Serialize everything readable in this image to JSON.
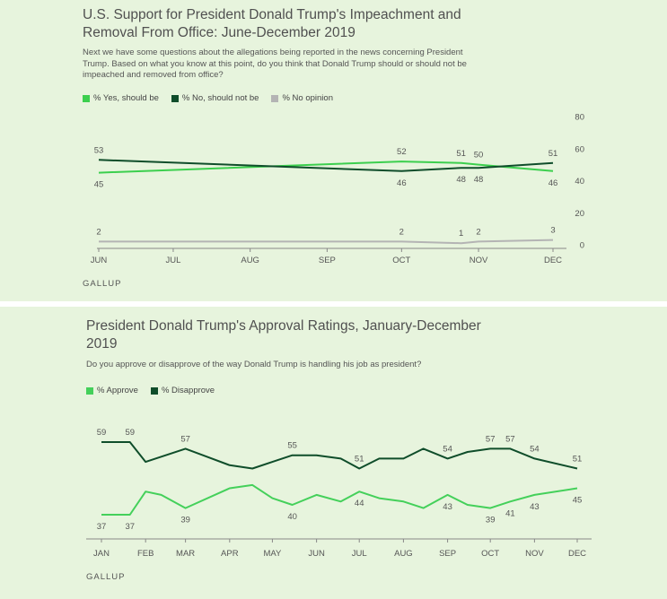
{
  "colors": {
    "yes": "#3ccf4e",
    "no": "#0f4d2a",
    "noop": "#b4b4b4",
    "approve": "#44d05a",
    "disapprove": "#0f4d2a",
    "panel_bg": "#e7f4dd"
  },
  "chart_data": [
    {
      "type": "line",
      "title": "U.S. Support for President Donald Trump's Impeachment and Removal From Office: June-December 2019",
      "question": "Next we have some questions about the allegations being reported in the news concerning President Trump. Based on what you know at this point, do you think that Donald Trump should or should not be impeached and removed from office?",
      "source": "GALLUP",
      "legend": [
        "% Yes, should be",
        "% No, should not be",
        "% No opinion"
      ],
      "legend_position": "top-left",
      "x_ticks": [
        "JUN",
        "JUL",
        "AUG",
        "SEP",
        "OCT",
        "NOV",
        "DEC"
      ],
      "y_ticks": [
        "0",
        "20",
        "40",
        "60",
        "80"
      ],
      "ylim": [
        0,
        80
      ],
      "y_axis_side": "right",
      "grid": false,
      "series": [
        {
          "name": "% Yes, should be",
          "color_key": "yes",
          "points": [
            {
              "date": "2019-06-01",
              "value": 45,
              "label": "45"
            },
            {
              "date": "2019-10-01",
              "value": 52,
              "label": "52"
            },
            {
              "date": "2019-10-25",
              "value": 51,
              "label": "51"
            },
            {
              "date": "2019-11-01",
              "value": 50,
              "label": "50"
            },
            {
              "date": "2019-12-01",
              "value": 46,
              "label": "46"
            }
          ]
        },
        {
          "name": "% No, should not be",
          "color_key": "no",
          "points": [
            {
              "date": "2019-06-01",
              "value": 53,
              "label": "53"
            },
            {
              "date": "2019-10-01",
              "value": 46,
              "label": "46"
            },
            {
              "date": "2019-10-25",
              "value": 48,
              "label": "48"
            },
            {
              "date": "2019-11-01",
              "value": 48,
              "label": "48"
            },
            {
              "date": "2019-12-01",
              "value": 51,
              "label": "51"
            }
          ]
        },
        {
          "name": "% No opinion",
          "color_key": "noop",
          "points": [
            {
              "date": "2019-06-01",
              "value": 2,
              "label": "2"
            },
            {
              "date": "2019-10-01",
              "value": 2,
              "label": "2"
            },
            {
              "date": "2019-10-25",
              "value": 1,
              "label": "1"
            },
            {
              "date": "2019-11-01",
              "value": 2,
              "label": "2"
            },
            {
              "date": "2019-12-01",
              "value": 3,
              "label": "3"
            }
          ]
        }
      ]
    },
    {
      "type": "line",
      "title": "President Donald Trump's Approval Ratings, January-December 2019",
      "question": "Do you approve or disapprove of the way Donald Trump is handling his job as president?",
      "source": "GALLUP",
      "legend": [
        "% Approve",
        "% Disapprove"
      ],
      "legend_position": "top-left",
      "x_ticks": [
        "JAN",
        "FEB",
        "MAR",
        "APR",
        "MAY",
        "JUN",
        "JUL",
        "AUG",
        "SEP",
        "OCT",
        "NOV",
        "DEC"
      ],
      "y_axis_visible": false,
      "grid": false,
      "series": [
        {
          "name": "% Approve",
          "color_key": "approve",
          "points": [
            {
              "date": "2019-01-01",
              "value": 37,
              "label": "37"
            },
            {
              "date": "2019-01-21",
              "value": 37,
              "label": "37"
            },
            {
              "date": "2019-02-01",
              "value": 44
            },
            {
              "date": "2019-02-12",
              "value": 43
            },
            {
              "date": "2019-03-01",
              "value": 39,
              "label": "39"
            },
            {
              "date": "2019-04-01",
              "value": 45
            },
            {
              "date": "2019-04-17",
              "value": 46
            },
            {
              "date": "2019-05-01",
              "value": 42
            },
            {
              "date": "2019-05-15",
              "value": 40,
              "label": "40"
            },
            {
              "date": "2019-06-01",
              "value": 43
            },
            {
              "date": "2019-06-18",
              "value": 41
            },
            {
              "date": "2019-07-01",
              "value": 44,
              "label": "44"
            },
            {
              "date": "2019-07-15",
              "value": 42
            },
            {
              "date": "2019-08-01",
              "value": 41
            },
            {
              "date": "2019-08-15",
              "value": 39
            },
            {
              "date": "2019-09-01",
              "value": 43,
              "label": "43"
            },
            {
              "date": "2019-09-15",
              "value": 40
            },
            {
              "date": "2019-10-01",
              "value": 39,
              "label": "39"
            },
            {
              "date": "2019-10-15",
              "value": 41,
              "label": "41"
            },
            {
              "date": "2019-11-01",
              "value": 43,
              "label": "43"
            },
            {
              "date": "2019-12-01",
              "value": 45,
              "label": "45"
            }
          ]
        },
        {
          "name": "% Disapprove",
          "color_key": "disapprove",
          "points": [
            {
              "date": "2019-01-01",
              "value": 59,
              "label": "59"
            },
            {
              "date": "2019-01-21",
              "value": 59,
              "label": "59"
            },
            {
              "date": "2019-02-01",
              "value": 53
            },
            {
              "date": "2019-03-01",
              "value": 57,
              "label": "57"
            },
            {
              "date": "2019-04-01",
              "value": 52
            },
            {
              "date": "2019-04-17",
              "value": 51
            },
            {
              "date": "2019-05-01",
              "value": 53
            },
            {
              "date": "2019-05-15",
              "value": 55,
              "label": "55"
            },
            {
              "date": "2019-06-01",
              "value": 55
            },
            {
              "date": "2019-06-18",
              "value": 54
            },
            {
              "date": "2019-07-01",
              "value": 51,
              "label": "51"
            },
            {
              "date": "2019-07-15",
              "value": 54
            },
            {
              "date": "2019-08-01",
              "value": 54
            },
            {
              "date": "2019-08-15",
              "value": 57
            },
            {
              "date": "2019-09-01",
              "value": 54,
              "label": "54"
            },
            {
              "date": "2019-09-15",
              "value": 56
            },
            {
              "date": "2019-10-01",
              "value": 57,
              "label": "57"
            },
            {
              "date": "2019-10-15",
              "value": 57,
              "label": "57"
            },
            {
              "date": "2019-11-01",
              "value": 54,
              "label": "54"
            },
            {
              "date": "2019-12-01",
              "value": 51,
              "label": "51"
            }
          ]
        }
      ]
    }
  ]
}
